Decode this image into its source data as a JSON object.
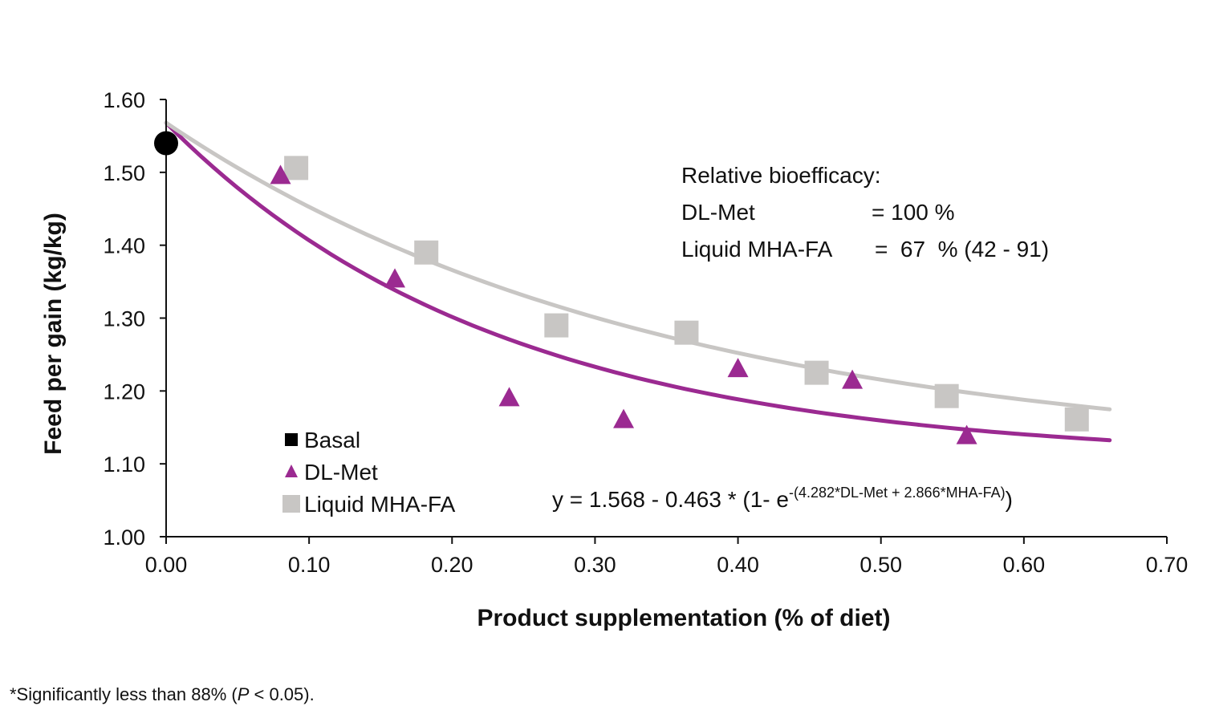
{
  "chart_data": {
    "type": "scatter",
    "xlabel": "Product supplementation (% of diet)",
    "ylabel": "Feed per gain (kg/kg)",
    "xlim": [
      0.0,
      0.7
    ],
    "ylim": [
      1.0,
      1.6
    ],
    "x_ticks": [
      "0.00",
      "0.10",
      "0.20",
      "0.30",
      "0.40",
      "0.50",
      "0.60",
      "0.70"
    ],
    "y_ticks": [
      "1.00",
      "1.10",
      "1.20",
      "1.30",
      "1.40",
      "1.50",
      "1.60"
    ],
    "grid": false,
    "legend_position": "bottom-left",
    "series": [
      {
        "name": "Basal",
        "marker": "circle",
        "color": "#000000",
        "points": [
          [
            0.0,
            1.54
          ]
        ]
      },
      {
        "name": "DL-Met",
        "marker": "triangle",
        "color": "#9b2a91",
        "points": [
          [
            0.08,
            1.495
          ],
          [
            0.16,
            1.353
          ],
          [
            0.24,
            1.19
          ],
          [
            0.32,
            1.16
          ],
          [
            0.4,
            1.23
          ],
          [
            0.48,
            1.214
          ],
          [
            0.56,
            1.138
          ]
        ]
      },
      {
        "name": "Liquid MHA-FA",
        "marker": "square",
        "color": "#c8c6c4",
        "points": [
          [
            0.091,
            1.506
          ],
          [
            0.182,
            1.39
          ],
          [
            0.273,
            1.29
          ],
          [
            0.364,
            1.28
          ],
          [
            0.455,
            1.225
          ],
          [
            0.546,
            1.193
          ],
          [
            0.637,
            1.161
          ]
        ]
      }
    ],
    "fit_curves": [
      {
        "series": "DL-Met",
        "color": "#9b2a91",
        "a": 1.568,
        "b": 0.463,
        "c": 4.282,
        "x_range": [
          0.0,
          0.66
        ]
      },
      {
        "series": "Liquid MHA-FA",
        "color": "#c8c6c4",
        "a": 1.568,
        "b": 0.463,
        "c": 2.866,
        "x_range": [
          0.0,
          0.66
        ]
      }
    ],
    "annotation": {
      "title": "Relative bioefficacy:",
      "line1_label": "DL-Met",
      "line1_value": "= 100 %",
      "line2_label": "Liquid MHA-FA",
      "line2_value": "=  67  % (42 - 91)"
    },
    "equation": {
      "base": "y = 1.568 - 0.463 * (1- e",
      "exponent": "-(4.282*DL-Met + 2.866*MHA-FA)",
      "close": ")"
    }
  },
  "footnote": {
    "prefix": "*Significantly less than 88% (",
    "italic": "P",
    "suffix": " < 0.05)."
  }
}
